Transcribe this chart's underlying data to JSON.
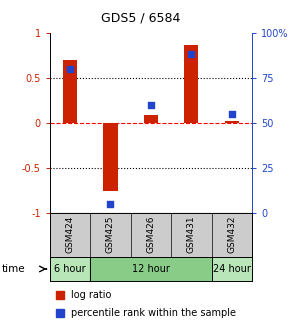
{
  "title": "GDS5 / 6584",
  "samples": [
    "GSM424",
    "GSM425",
    "GSM426",
    "GSM431",
    "GSM432"
  ],
  "log_ratio": [
    0.7,
    -0.76,
    0.08,
    0.86,
    0.02
  ],
  "percentile_rank": [
    80,
    5,
    60,
    88,
    55
  ],
  "time_groups": [
    {
      "label": "6 hour",
      "count": 1,
      "color": "#b8e6b8"
    },
    {
      "label": "12 hour",
      "count": 3,
      "color": "#88cc88"
    },
    {
      "label": "24 hour",
      "count": 1,
      "color": "#b8e6b8"
    }
  ],
  "bar_color": "#cc2200",
  "square_color": "#2244cc",
  "ylim": [
    -1,
    1
  ],
  "y2lim": [
    0,
    100
  ],
  "yticks_left": [
    -1,
    -0.5,
    0,
    0.5,
    1
  ],
  "yticks_left_labels": [
    "-1",
    "-0.5",
    "0",
    "0.5",
    "1"
  ],
  "yticks_right": [
    0,
    25,
    50,
    75,
    100
  ],
  "yticks_right_labels": [
    "0",
    "25",
    "50",
    "75",
    "100%"
  ],
  "hline_dotted_vals": [
    -0.5,
    0.5
  ],
  "hline_dashed_val": 0,
  "bar_width": 0.35,
  "square_size": 25,
  "legend_bar_label": "log ratio",
  "legend_sq_label": "percentile rank within the sample",
  "sample_row_color": "#cccccc",
  "left_axis_color": "#cc2200",
  "right_axis_color": "#2244cc",
  "fig_w": 2.93,
  "fig_h": 3.27,
  "dpi": 100
}
